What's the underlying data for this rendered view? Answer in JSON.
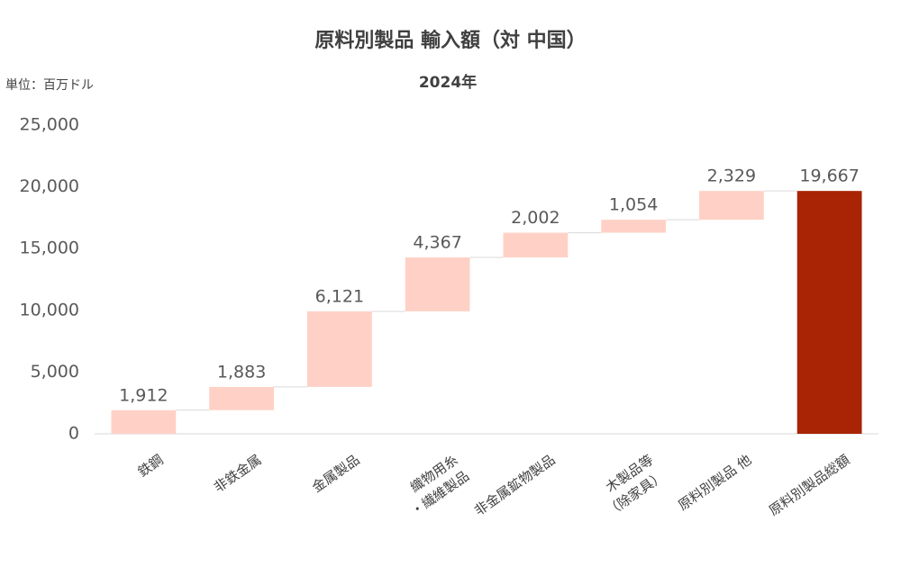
{
  "chart_data": {
    "type": "waterfall",
    "title": "原料別製品 輸入額（対 中国）",
    "subtitle": "2024年",
    "unit_label": "単位：百万ドル",
    "categories": [
      "鉄鋼",
      "非鉄金属",
      "金属製品",
      "織物用糸\n・繊維製品",
      "非金属鉱物製品",
      "木製品等\n（除家具）",
      "原料別製品 他",
      "原料別製品総額"
    ],
    "values": [
      1912,
      1883,
      6121,
      4367,
      2002,
      1054,
      2329,
      19667
    ],
    "value_labels": [
      "1,912",
      "1,883",
      "6,121",
      "4,367",
      "2,002",
      "1,054",
      "2,329",
      "19,667"
    ],
    "is_total": [
      false,
      false,
      false,
      false,
      false,
      false,
      false,
      true
    ],
    "color": "#ffd1c6",
    "total_color": "#a82404",
    "ylim": [
      0,
      25000
    ],
    "yticks": [
      0,
      {
        "value": 5000,
        "label": "5,000"
      },
      {
        "value": 10000,
        "label": "10,000"
      },
      {
        "value": 15000,
        "label": "15,000"
      },
      {
        "value": 20000,
        "label": "20,000"
      },
      {
        "value": 25000,
        "label": "25,000"
      }
    ],
    "grid": false
  }
}
